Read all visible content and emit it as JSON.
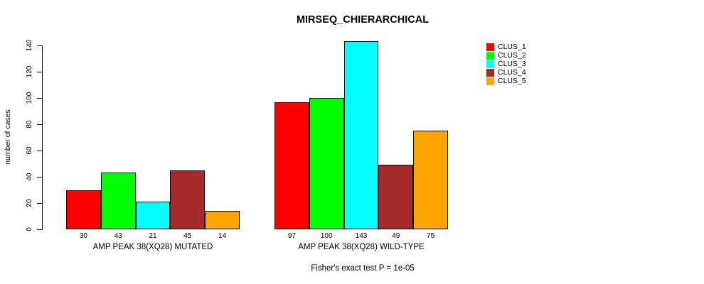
{
  "chart_data": {
    "type": "bar",
    "title": "MIRSEQ_CHIERARCHICAL",
    "ylabel": "number of cases",
    "caption": "Fisher's exact test P = 1e-05",
    "ylim": [
      0,
      140
    ],
    "yticks": [
      0,
      20,
      40,
      60,
      80,
      100,
      120,
      140
    ],
    "grid": false,
    "legend_position": "right",
    "series": [
      {
        "name": "CLUS_1",
        "color": "#FF0000"
      },
      {
        "name": "CLUS_2",
        "color": "#00FF00"
      },
      {
        "name": "CLUS_3",
        "color": "#00FFFF"
      },
      {
        "name": "CLUS_4",
        "color": "#A52A2A"
      },
      {
        "name": "CLUS_5",
        "color": "#FFA500"
      }
    ],
    "groups": [
      {
        "label": "AMP PEAK 38(XQ28) MUTATED",
        "values": [
          30,
          43,
          21,
          45,
          14
        ]
      },
      {
        "label": "AMP PEAK 38(XQ28) WILD-TYPE",
        "values": [
          97,
          100,
          143,
          49,
          75
        ]
      }
    ],
    "bar_border_color": "#000000",
    "axis_color": "#000000",
    "text_color": "#000000",
    "background_color": "#FFFFFF"
  }
}
